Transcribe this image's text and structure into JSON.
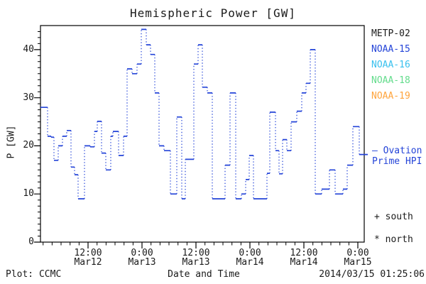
{
  "title": "Hemispheric Power [GW]",
  "y_axis": {
    "label": "P [GW]",
    "ticks": [
      {
        "value": 0,
        "label": "0"
      },
      {
        "value": 10,
        "label": "10"
      },
      {
        "value": 20,
        "label": "20"
      },
      {
        "value": 30,
        "label": "30"
      },
      {
        "value": 40,
        "label": "40"
      }
    ],
    "minor_step": 1.25
  },
  "x_axis": {
    "label": "Date and Time",
    "major_ticks": [
      {
        "hour": 10.583,
        "time": "12:00",
        "date": "Mar12"
      },
      {
        "hour": 22.583,
        "time": "0:00",
        "date": "Mar13"
      },
      {
        "hour": 34.583,
        "time": "12:00",
        "date": "Mar13"
      },
      {
        "hour": 46.583,
        "time": "0:00",
        "date": "Mar14"
      },
      {
        "hour": 58.583,
        "time": "12:00",
        "date": "Mar14"
      },
      {
        "hour": 70.583,
        "time": "0:00",
        "date": "Mar15"
      }
    ],
    "minor_step_hours": 2,
    "minor_offset_hours": 0.583
  },
  "legend": {
    "satellites": [
      {
        "label": "METP-02",
        "color": "#1a1a1a"
      },
      {
        "label": "NOAA-15",
        "color": "#2444d8"
      },
      {
        "label": "NOAA-16",
        "color": "#38c0ee"
      },
      {
        "label": "NOAA-18",
        "color": "#63dc8c"
      },
      {
        "label": "NOAA-19",
        "color": "#ffa43c"
      }
    ]
  },
  "annotations": {
    "ovation_line1": "— Ovation",
    "ovation_line2": "Prime HPI",
    "south": "+ south",
    "north": "* north"
  },
  "footer": {
    "left": "Plot: CCMC",
    "center": "Date and Time",
    "right": "2014/03/15 01:25:06"
  },
  "colors": {
    "line": "#2444d8",
    "axis": "#000000",
    "text": "#1a1a1a"
  },
  "chart_data": {
    "type": "line",
    "title": "Hemispheric Power [GW]",
    "xlabel": "Date and Time",
    "ylabel": "P [GW]",
    "ylim": [
      0,
      45
    ],
    "x_start": "2014-03-12 01:25",
    "x_end": "2014-03-15 01:25",
    "x_total_hours": 72,
    "grid": false,
    "legend_position": "right",
    "series": [
      {
        "name": "Ovation Prime HPI",
        "color": "#2444d8",
        "style": "step plot: solid horizontal segments, dotted vertical connectors",
        "steps_format": "[hours_from_x_start, power_GW]",
        "steps": [
          [
            0.0,
            28
          ],
          [
            1.58,
            22
          ],
          [
            2.37,
            21.8
          ],
          [
            3.0,
            17
          ],
          [
            3.95,
            20
          ],
          [
            4.89,
            22
          ],
          [
            5.84,
            23.2
          ],
          [
            6.79,
            15.6
          ],
          [
            7.58,
            14
          ],
          [
            8.37,
            9
          ],
          [
            9.79,
            20
          ],
          [
            11.05,
            19.8
          ],
          [
            12.0,
            23
          ],
          [
            12.63,
            25.1
          ],
          [
            13.58,
            18.5
          ],
          [
            14.53,
            15
          ],
          [
            15.63,
            22
          ],
          [
            16.11,
            23
          ],
          [
            17.37,
            18
          ],
          [
            18.47,
            22
          ],
          [
            19.26,
            36
          ],
          [
            20.37,
            35
          ],
          [
            21.47,
            37
          ],
          [
            22.42,
            44.2
          ],
          [
            23.53,
            41
          ],
          [
            24.47,
            39
          ],
          [
            25.42,
            31
          ],
          [
            26.37,
            20
          ],
          [
            27.47,
            19
          ],
          [
            28.89,
            10
          ],
          [
            30.32,
            26
          ],
          [
            31.42,
            9
          ],
          [
            32.21,
            17.2
          ],
          [
            34.11,
            37
          ],
          [
            35.05,
            41
          ],
          [
            36.0,
            32.2
          ],
          [
            37.11,
            31
          ],
          [
            38.21,
            9
          ],
          [
            41.05,
            16
          ],
          [
            42.16,
            31
          ],
          [
            43.42,
            9
          ],
          [
            44.68,
            10
          ],
          [
            45.63,
            13
          ],
          [
            46.42,
            18
          ],
          [
            47.37,
            9
          ],
          [
            50.37,
            14.3
          ],
          [
            51.0,
            27
          ],
          [
            52.26,
            19
          ],
          [
            53.05,
            14.2
          ],
          [
            53.84,
            21.3
          ],
          [
            54.79,
            19
          ],
          [
            55.74,
            25
          ],
          [
            57.0,
            27.2
          ],
          [
            58.11,
            31
          ],
          [
            59.05,
            33
          ],
          [
            60.0,
            40
          ],
          [
            61.11,
            10
          ],
          [
            62.53,
            11
          ],
          [
            64.26,
            15
          ],
          [
            65.53,
            10
          ],
          [
            67.26,
            11
          ],
          [
            68.21,
            16
          ],
          [
            69.47,
            24
          ],
          [
            70.89,
            18.2
          ]
        ]
      }
    ]
  }
}
